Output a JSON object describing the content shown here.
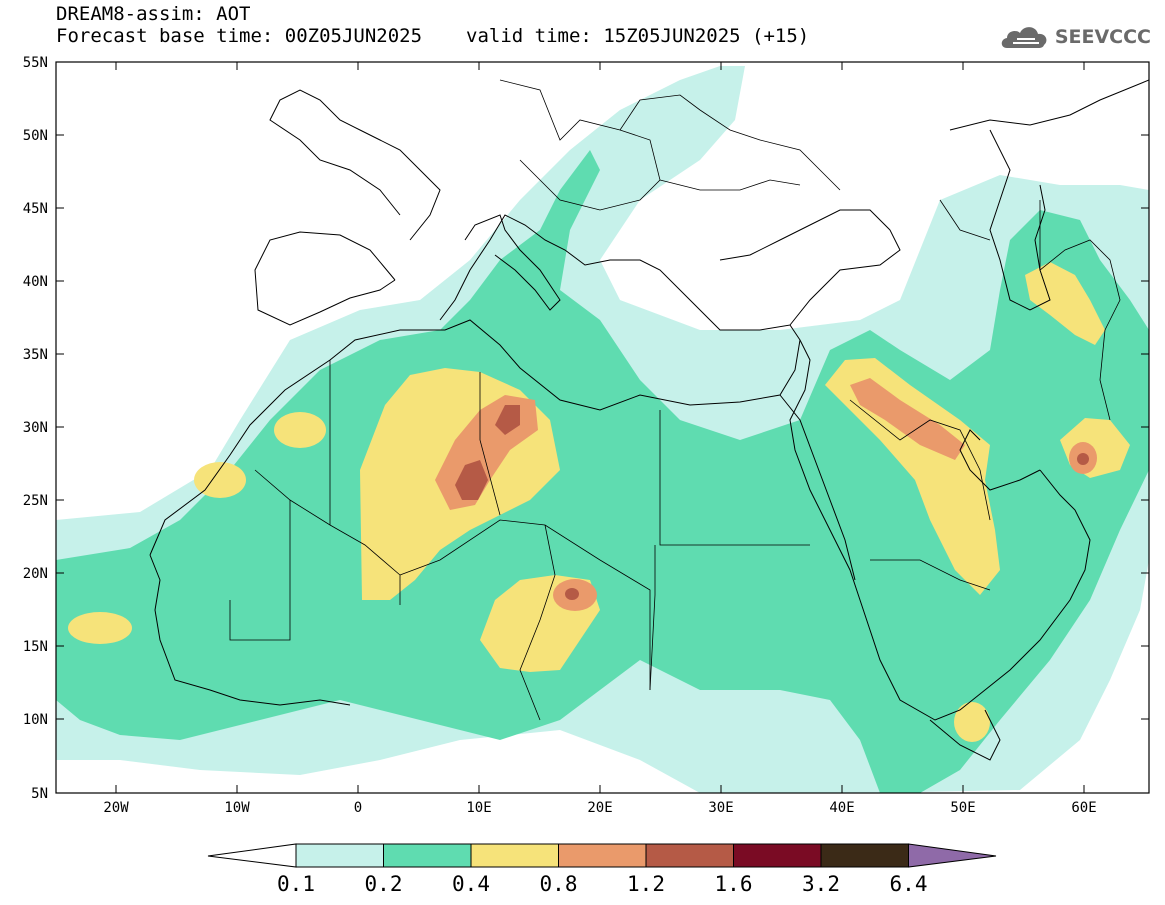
{
  "header": {
    "title": "DREAM8-assim: AOT",
    "base_time": "Forecast base time: 00Z05JUN2025",
    "valid_time": "valid time: 15Z05JUN2025 (+15)",
    "logo_text": "SEEVCCC"
  },
  "map": {
    "lat_labels": [
      "55N",
      "50N",
      "45N",
      "40N",
      "35N",
      "30N",
      "25N",
      "20N",
      "15N",
      "10N",
      "5N"
    ],
    "lon_labels": [
      "20W",
      "10W",
      "0",
      "10E",
      "20E",
      "30E",
      "40E",
      "50E",
      "60E"
    ],
    "colorbar": {
      "levels": [
        "0.1",
        "0.2",
        "0.4",
        "0.8",
        "1.2",
        "1.6",
        "3.2",
        "6.4"
      ],
      "colors": [
        "#ffffff",
        "#c6f1ea",
        "#5fdcb0",
        "#f6e37a",
        "#ea9a6b",
        "#b55a46",
        "#7a0b24",
        "#3b2a17",
        "#8f6aa8"
      ]
    }
  }
}
